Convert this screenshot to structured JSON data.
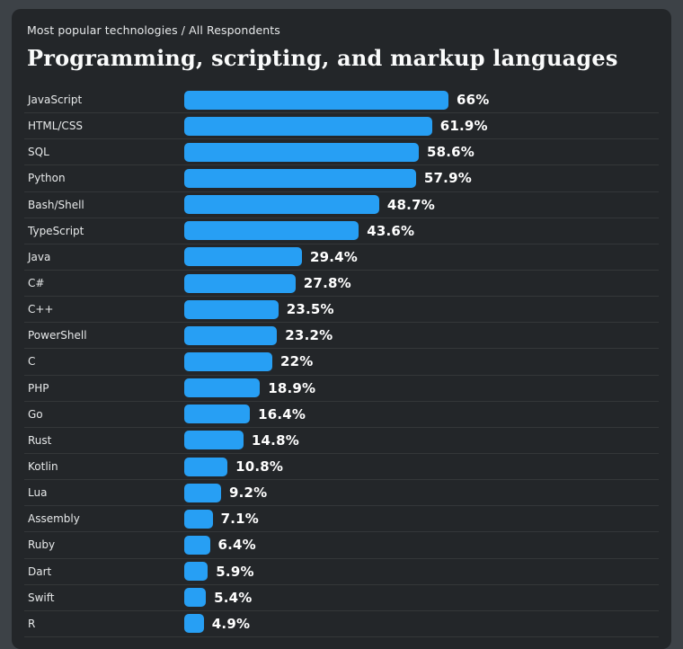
{
  "header": {
    "breadcrumb": "Most popular technologies / All Respondents",
    "title": "Programming, scripting, and markup languages"
  },
  "chart_data": {
    "type": "bar",
    "orientation": "horizontal",
    "title": "Programming, scripting, and markup languages",
    "subtitle": "Most popular technologies / All Respondents",
    "unit": "%",
    "axis_range": [
      0,
      100
    ],
    "grid": false,
    "legend": false,
    "max_value": 66,
    "categories": [
      "JavaScript",
      "HTML/CSS",
      "SQL",
      "Python",
      "Bash/Shell",
      "TypeScript",
      "Java",
      "C#",
      "C++",
      "PowerShell",
      "C",
      "PHP",
      "Go",
      "Rust",
      "Kotlin",
      "Lua",
      "Assembly",
      "Ruby",
      "Dart",
      "Swift",
      "R"
    ],
    "values": [
      66,
      61.9,
      58.6,
      57.9,
      48.7,
      43.6,
      29.4,
      27.8,
      23.5,
      23.2,
      22,
      18.9,
      16.4,
      14.8,
      10.8,
      9.2,
      7.1,
      6.4,
      5.9,
      5.4,
      4.9
    ],
    "value_labels": [
      "66%",
      "61.9%",
      "58.6%",
      "57.9%",
      "48.7%",
      "43.6%",
      "29.4%",
      "27.8%",
      "23.5%",
      "23.2%",
      "22%",
      "18.9%",
      "16.4%",
      "14.8%",
      "10.8%",
      "9.2%",
      "7.1%",
      "6.4%",
      "5.9%",
      "5.4%",
      "4.9%"
    ]
  },
  "colors": {
    "outer_background": "#3d4247",
    "card_background": "#232629",
    "bar": "#279ff4",
    "label_text": "#e7e9ea",
    "percent_text": "#ffffff",
    "separator": "rgba(255,255,255,0.08)"
  }
}
